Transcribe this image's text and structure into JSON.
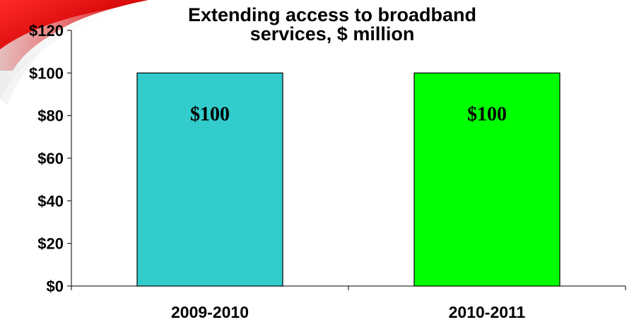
{
  "chart_data": {
    "type": "bar",
    "title_lines": [
      "Extending access to broadband",
      "services, $ million"
    ],
    "categories": [
      "2009-2010",
      "2010-2011"
    ],
    "values": [
      100,
      100
    ],
    "value_labels": [
      "$100",
      "$100"
    ],
    "y_tick_labels": [
      "$0",
      "$20",
      "$40",
      "$60",
      "$80",
      "$100",
      "$120"
    ],
    "y_ticks": [
      0,
      20,
      40,
      60,
      80,
      100,
      120
    ],
    "ylim": [
      0,
      120
    ],
    "xlabel": "",
    "ylabel": "",
    "grid": false,
    "legend": "none",
    "bar_colors": [
      "#33CCCC",
      "#00FF00"
    ],
    "bar_edge_color": "#000000",
    "decoration_colors": [
      "#CC0000",
      "#F5F5F5"
    ]
  }
}
